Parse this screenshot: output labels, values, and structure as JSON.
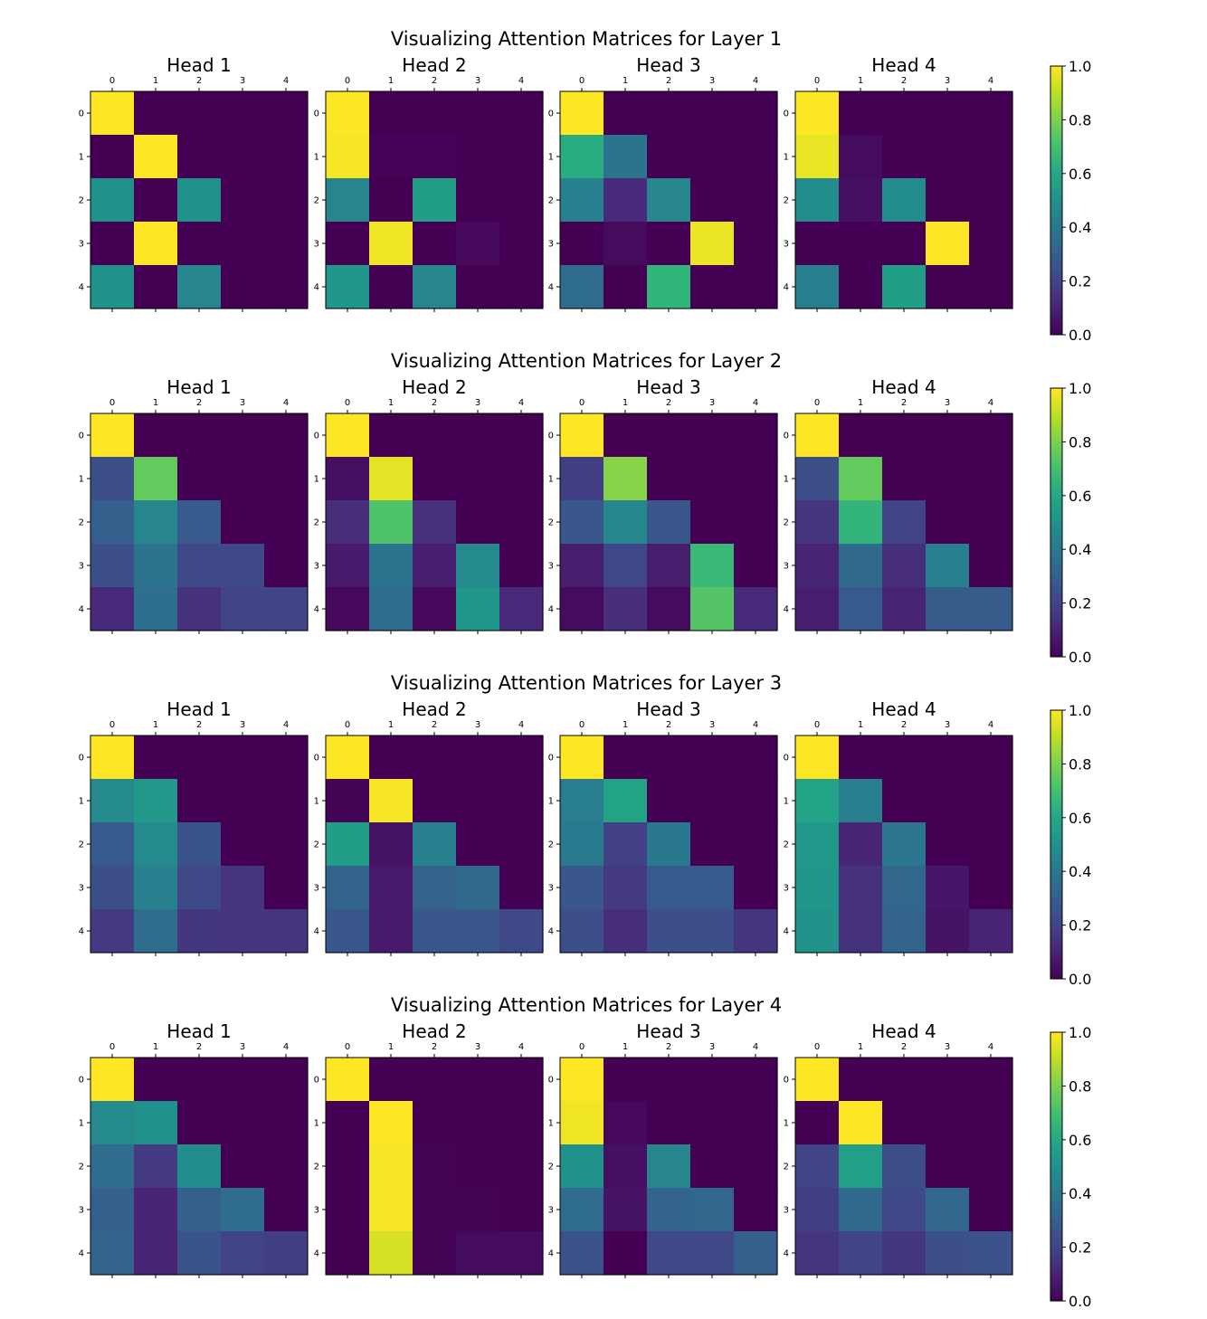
{
  "chart_data": [
    {
      "type": "heatmap",
      "title": "Visualizing Attention Matrices for Layer 1",
      "tick_labels": [
        "0",
        "1",
        "2",
        "3",
        "4"
      ],
      "colorbar": {
        "colormap": "viridis",
        "range": [
          0,
          1
        ],
        "ticks": [
          "0.0",
          "0.2",
          "0.4",
          "0.6",
          "0.8",
          "1.0"
        ]
      },
      "heads": [
        {
          "title": "Head 1",
          "matrix": [
            [
              1,
              0,
              0,
              0,
              0
            ],
            [
              0,
              1,
              0,
              0,
              0
            ],
            [
              0.5,
              0,
              0.5,
              0,
              0
            ],
            [
              0,
              1,
              0,
              0,
              0
            ],
            [
              0.5,
              0,
              0.45,
              0,
              0
            ]
          ]
        },
        {
          "title": "Head 2",
          "matrix": [
            [
              1,
              0,
              0,
              0,
              0
            ],
            [
              0.99,
              0.005,
              0.005,
              0,
              0
            ],
            [
              0.45,
              0,
              0.55,
              0,
              0
            ],
            [
              0,
              0.98,
              0,
              0.02,
              0
            ],
            [
              0.52,
              0,
              0.45,
              0,
              0
            ]
          ]
        },
        {
          "title": "Head 3",
          "matrix": [
            [
              1,
              0,
              0,
              0,
              0
            ],
            [
              0.62,
              0.38,
              0,
              0,
              0
            ],
            [
              0.43,
              0.12,
              0.45,
              0,
              0
            ],
            [
              0,
              0.03,
              0,
              0.97,
              0
            ],
            [
              0.35,
              0,
              0.65,
              0,
              0
            ]
          ]
        },
        {
          "title": "Head 4",
          "matrix": [
            [
              1,
              0,
              0,
              0,
              0
            ],
            [
              0.97,
              0.03,
              0,
              0,
              0
            ],
            [
              0.48,
              0.04,
              0.48,
              0,
              0
            ],
            [
              0,
              0,
              0,
              1,
              0
            ],
            [
              0.42,
              0,
              0.55,
              0,
              0
            ]
          ]
        }
      ]
    },
    {
      "type": "heatmap",
      "title": "Visualizing Attention Matrices for Layer 2",
      "tick_labels": [
        "0",
        "1",
        "2",
        "3",
        "4"
      ],
      "colorbar": {
        "colormap": "viridis",
        "range": [
          0,
          1
        ],
        "ticks": [
          "0.0",
          "0.2",
          "0.4",
          "0.6",
          "0.8",
          "1.0"
        ]
      },
      "heads": [
        {
          "title": "Head 1",
          "matrix": [
            [
              1,
              0,
              0,
              0,
              0
            ],
            [
              0.24,
              0.76,
              0,
              0,
              0
            ],
            [
              0.3,
              0.45,
              0.28,
              0,
              0
            ],
            [
              0.24,
              0.38,
              0.22,
              0.22,
              0
            ],
            [
              0.12,
              0.36,
              0.14,
              0.2,
              0.2
            ]
          ]
        },
        {
          "title": "Head 2",
          "matrix": [
            [
              1,
              0,
              0,
              0,
              0
            ],
            [
              0.04,
              0.96,
              0,
              0,
              0
            ],
            [
              0.13,
              0.72,
              0.14,
              0,
              0
            ],
            [
              0.07,
              0.38,
              0.08,
              0.47,
              0
            ],
            [
              0.02,
              0.35,
              0.02,
              0.52,
              0.12
            ]
          ]
        },
        {
          "title": "Head 3",
          "matrix": [
            [
              1,
              0,
              0,
              0,
              0
            ],
            [
              0.18,
              0.82,
              0,
              0,
              0
            ],
            [
              0.27,
              0.46,
              0.27,
              0,
              0
            ],
            [
              0.08,
              0.21,
              0.08,
              0.67,
              0
            ],
            [
              0.03,
              0.13,
              0.03,
              0.73,
              0.12
            ]
          ]
        },
        {
          "title": "Head 4",
          "matrix": [
            [
              1,
              0,
              0,
              0,
              0
            ],
            [
              0.24,
              0.76,
              0,
              0,
              0
            ],
            [
              0.15,
              0.65,
              0.2,
              0,
              0
            ],
            [
              0.1,
              0.34,
              0.13,
              0.43,
              0
            ],
            [
              0.08,
              0.28,
              0.1,
              0.29,
              0.29
            ]
          ]
        }
      ]
    },
    {
      "type": "heatmap",
      "title": "Visualizing Attention Matrices for Layer 3",
      "tick_labels": [
        "0",
        "1",
        "2",
        "3",
        "4"
      ],
      "colorbar": {
        "colormap": "viridis",
        "range": [
          0,
          1
        ],
        "ticks": [
          "0.0",
          "0.2",
          "0.4",
          "0.6",
          "0.8",
          "1.0"
        ]
      },
      "heads": [
        {
          "title": "Head 1",
          "matrix": [
            [
              1,
              0,
              0,
              0,
              0
            ],
            [
              0.47,
              0.53,
              0,
              0,
              0
            ],
            [
              0.28,
              0.47,
              0.26,
              0,
              0
            ],
            [
              0.24,
              0.43,
              0.22,
              0.15,
              0
            ],
            [
              0.17,
              0.35,
              0.16,
              0.15,
              0.15
            ]
          ]
        },
        {
          "title": "Head 2",
          "matrix": [
            [
              1,
              0,
              0,
              0,
              0
            ],
            [
              0.01,
              0.99,
              0,
              0,
              0
            ],
            [
              0.55,
              0.05,
              0.43,
              0,
              0
            ],
            [
              0.32,
              0.07,
              0.31,
              0.34,
              0
            ],
            [
              0.27,
              0.07,
              0.27,
              0.27,
              0.22
            ]
          ]
        },
        {
          "title": "Head 3",
          "matrix": [
            [
              1,
              0,
              0,
              0,
              0
            ],
            [
              0.42,
              0.58,
              0,
              0,
              0
            ],
            [
              0.41,
              0.19,
              0.4,
              0,
              0
            ],
            [
              0.27,
              0.17,
              0.28,
              0.28,
              0
            ],
            [
              0.24,
              0.13,
              0.24,
              0.24,
              0.15
            ]
          ]
        },
        {
          "title": "Head 4",
          "matrix": [
            [
              1,
              0,
              0,
              0,
              0
            ],
            [
              0.58,
              0.42,
              0,
              0,
              0
            ],
            [
              0.53,
              0.1,
              0.39,
              0,
              0
            ],
            [
              0.52,
              0.14,
              0.33,
              0.06,
              0
            ],
            [
              0.51,
              0.14,
              0.32,
              0.05,
              0.1
            ]
          ]
        }
      ]
    },
    {
      "type": "heatmap",
      "title": "Visualizing Attention Matrices for Layer 4",
      "tick_labels": [
        "0",
        "1",
        "2",
        "3",
        "4"
      ],
      "colorbar": {
        "colormap": "viridis",
        "range": [
          0,
          1
        ],
        "ticks": [
          "0.0",
          "0.2",
          "0.4",
          "0.6",
          "0.8",
          "1.0"
        ]
      },
      "heads": [
        {
          "title": "Head 1",
          "matrix": [
            [
              1,
              0,
              0,
              0,
              0
            ],
            [
              0.47,
              0.5,
              0,
              0,
              0
            ],
            [
              0.35,
              0.17,
              0.48,
              0,
              0
            ],
            [
              0.3,
              0.1,
              0.3,
              0.35,
              0
            ],
            [
              0.32,
              0.1,
              0.26,
              0.2,
              0.18
            ]
          ]
        },
        {
          "title": "Head 2",
          "matrix": [
            [
              1,
              0,
              0,
              0,
              0
            ],
            [
              0,
              1,
              0,
              0,
              0
            ],
            [
              0,
              0.99,
              0.01,
              0,
              0
            ],
            [
              0,
              0.99,
              0.01,
              0.01,
              0
            ],
            [
              0,
              0.94,
              0.01,
              0.03,
              0.03
            ]
          ]
        },
        {
          "title": "Head 3",
          "matrix": [
            [
              1,
              0,
              0,
              0,
              0
            ],
            [
              0.98,
              0.02,
              0,
              0,
              0
            ],
            [
              0.5,
              0.04,
              0.45,
              0,
              0
            ],
            [
              0.35,
              0.05,
              0.32,
              0.33,
              0
            ],
            [
              0.25,
              0,
              0.22,
              0.22,
              0.3
            ]
          ]
        },
        {
          "title": "Head 4",
          "matrix": [
            [
              1,
              0,
              0,
              0,
              0
            ],
            [
              0,
              1,
              0,
              0,
              0
            ],
            [
              0.2,
              0.56,
              0.24,
              0,
              0
            ],
            [
              0.18,
              0.34,
              0.22,
              0.33,
              0
            ],
            [
              0.15,
              0.2,
              0.16,
              0.24,
              0.25
            ]
          ]
        }
      ]
    }
  ]
}
